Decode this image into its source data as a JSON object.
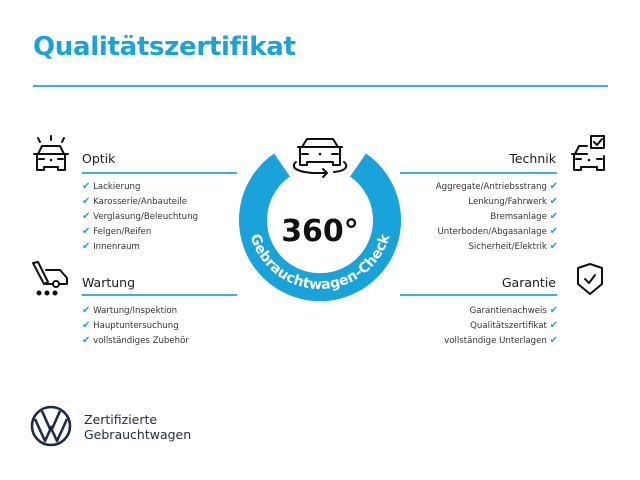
{
  "title": "Qualitätszertifikat",
  "accent_color": "#1aa3db",
  "badge": {
    "number": "360°",
    "ring_text": "Gebrauchtwagen-Check",
    "icon": "rotating-car-icon"
  },
  "sections": {
    "optik": {
      "title": "Optik",
      "icon": "car-lights-icon",
      "items": [
        "Lackierung",
        "Karosserie/Anbauteile",
        "Verglasung/Beleuchtung",
        "Felgen/Reifen",
        "Innenraum"
      ]
    },
    "wartung": {
      "title": "Wartung",
      "icon": "service-truck-icon",
      "items": [
        "Wartung/Inspektion",
        "Hauptuntersuchung",
        "vollständiges Zubehör"
      ]
    },
    "technik": {
      "title": "Technik",
      "icon": "car-checkbox-icon",
      "items": [
        "Aggregate/Antriebsstrang",
        "Lenkung/Fahrwerk",
        "Bremsanlage",
        "Unterboden/Abgasanlage",
        "Sicherheit/Elektrik"
      ]
    },
    "garantie": {
      "title": "Garantie",
      "icon": "shield-check-icon",
      "items": [
        "Garantienachweis",
        "Qualitätszertifikat",
        "vollständige Unterlagen"
      ]
    }
  },
  "check_mark": "✔",
  "footer": {
    "logo": "VW",
    "line1": "Zertifizierte",
    "line2": "Gebrauchtwagen"
  }
}
